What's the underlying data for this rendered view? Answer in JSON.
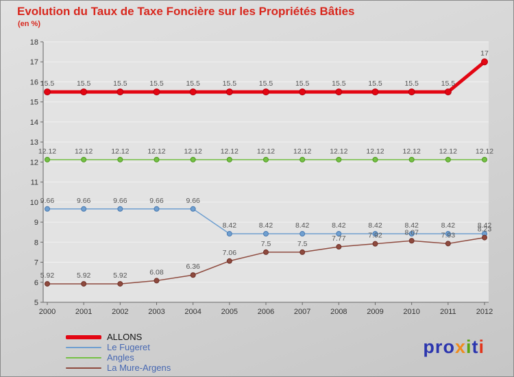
{
  "title": "Evolution du Taux de Taxe Foncière sur les Propriétés Bâties",
  "subtitle": "(en %)",
  "chart_data": {
    "type": "line",
    "x": [
      2000,
      2001,
      2002,
      2003,
      2004,
      2005,
      2006,
      2007,
      2008,
      2009,
      2010,
      2011,
      2012
    ],
    "ylim": [
      5,
      18
    ],
    "ytick_step": 1,
    "grid": "horizontal",
    "legend_position": "bottom-left",
    "series": [
      {
        "name": "ALLONS",
        "color": "#e30613",
        "edge": "#b3000c",
        "width": 5,
        "marker": 4.5,
        "values": [
          15.5,
          15.5,
          15.5,
          15.5,
          15.5,
          15.5,
          15.5,
          15.5,
          15.5,
          15.5,
          15.5,
          15.5,
          17
        ]
      },
      {
        "name": "Le Fugeret",
        "color": "#6f9fd0",
        "edge": "#4a7ab0",
        "width": 1.5,
        "marker": 3.5,
        "values": [
          9.66,
          9.66,
          9.66,
          9.66,
          9.66,
          8.42,
          8.42,
          8.42,
          8.42,
          8.42,
          8.42,
          8.42,
          8.42
        ]
      },
      {
        "name": "Angles",
        "color": "#74c044",
        "edge": "#4f9a22",
        "width": 1.5,
        "marker": 3.5,
        "values": [
          12.12,
          12.12,
          12.12,
          12.12,
          12.12,
          12.12,
          12.12,
          12.12,
          12.12,
          12.12,
          12.12,
          12.12,
          12.12
        ]
      },
      {
        "name": "La Mure-Argens",
        "color": "#8e4a3e",
        "edge": "#6e3028",
        "width": 1.5,
        "marker": 3.5,
        "values": [
          5.92,
          5.92,
          5.92,
          6.08,
          6.36,
          7.06,
          7.5,
          7.5,
          7.77,
          7.92,
          8.07,
          7.93,
          8.23
        ]
      }
    ]
  },
  "colors": {
    "title": "#d8261c",
    "axis": "#666666",
    "tick_text": "#333333",
    "label_text": "#555555",
    "plot_bg": "#e3e3e3",
    "grid": "#f2f2f2"
  },
  "logo": {
    "text": "proxiti",
    "letters": [
      {
        "ch": "p",
        "color": "#2b35ae"
      },
      {
        "ch": "r",
        "color": "#2b35ae"
      },
      {
        "ch": "o",
        "color": "#2b35ae"
      },
      {
        "ch": "x",
        "color": "#f08c1e"
      },
      {
        "ch": "i",
        "color": "#5aa510"
      },
      {
        "ch": "t",
        "color": "#2b35ae"
      },
      {
        "ch": "i",
        "color": "#e2341b"
      }
    ]
  }
}
